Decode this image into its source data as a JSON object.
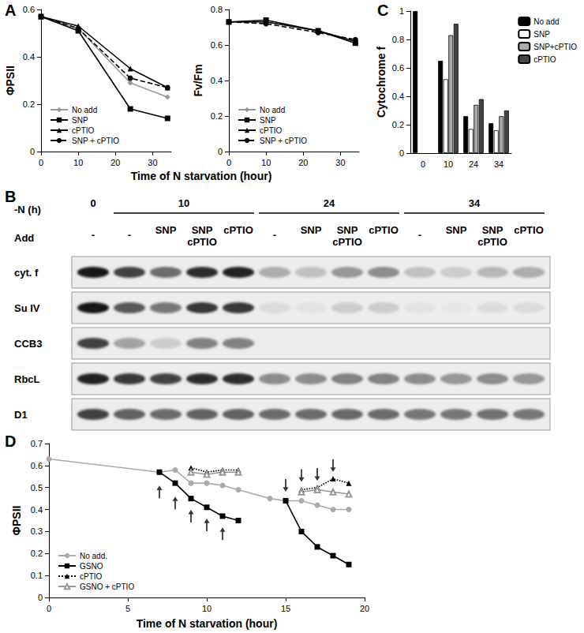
{
  "panel_labels": [
    "A",
    "B",
    "C",
    "D"
  ],
  "chart_data": [
    {
      "type": "line",
      "x_label": "Time of N starvation (hour)",
      "y_label": "ΦPSII",
      "xlim": [
        0,
        35
      ],
      "xticks": [
        0,
        10,
        20,
        30
      ],
      "ylim": [
        0,
        0.6
      ],
      "yticks": [
        0,
        0.2,
        0.4,
        0.6
      ],
      "legend": "bottom-left",
      "series": [
        {
          "name": "No add",
          "color": "#999999",
          "marker": "diamond",
          "line_style": "solid",
          "x": [
            0,
            10,
            24,
            34
          ],
          "values": [
            0.57,
            0.52,
            0.29,
            0.23
          ]
        },
        {
          "name": "SNP",
          "color": "#000000",
          "marker": "square",
          "line_style": "solid",
          "x": [
            0,
            10,
            24,
            34
          ],
          "values": [
            0.57,
            0.51,
            0.18,
            0.14
          ]
        },
        {
          "name": "cPTIO",
          "color": "#000000",
          "marker": "triangle",
          "line_style": "solid",
          "x": [
            0,
            10,
            24,
            34
          ],
          "values": [
            0.57,
            0.53,
            0.35,
            0.27
          ]
        },
        {
          "name": "SNP + cPTIO",
          "color": "#000000",
          "marker": "circle",
          "line_style": "dashed",
          "x": [
            0,
            10,
            24,
            34
          ],
          "values": [
            0.57,
            0.52,
            0.31,
            0.27
          ]
        }
      ]
    },
    {
      "type": "line",
      "y_label": "Fv/Fm",
      "xlim": [
        0,
        35
      ],
      "xticks": [
        0,
        10,
        20,
        30
      ],
      "ylim": [
        0,
        0.8
      ],
      "yticks": [
        0,
        0.2,
        0.4,
        0.6,
        0.8
      ],
      "legend": "bottom-left",
      "series": [
        {
          "name": "No add",
          "color": "#999999",
          "marker": "diamond",
          "line_style": "solid",
          "x": [
            0,
            10,
            24,
            34
          ],
          "values": [
            0.73,
            0.73,
            0.68,
            0.62
          ]
        },
        {
          "name": "SNP",
          "color": "#000000",
          "marker": "square",
          "line_style": "solid",
          "x": [
            0,
            10,
            24,
            34
          ],
          "values": [
            0.73,
            0.74,
            0.68,
            0.61
          ]
        },
        {
          "name": "cPTIO",
          "color": "#000000",
          "marker": "triangle",
          "line_style": "solid",
          "x": [
            0,
            10,
            24,
            34
          ],
          "values": [
            0.73,
            0.73,
            0.68,
            0.62
          ]
        },
        {
          "name": "SNP + cPTIO",
          "color": "#000000",
          "marker": "circle",
          "line_style": "dashed",
          "x": [
            0,
            10,
            24,
            34
          ],
          "values": [
            0.73,
            0.72,
            0.67,
            0.63
          ]
        }
      ]
    },
    {
      "type": "bar",
      "y_label": "Cytochrome f",
      "categories": [
        "0",
        "10",
        "24",
        "34"
      ],
      "ylim": [
        0,
        1
      ],
      "yticks": [
        0,
        0.2,
        0.4,
        0.6,
        0.8,
        1
      ],
      "legend": "top-right",
      "series": [
        {
          "name": "No add",
          "color": "#000000",
          "values": [
            1,
            0.65,
            0.26,
            0.21
          ]
        },
        {
          "name": "SNP",
          "color": "#ffffff",
          "values": [
            null,
            0.52,
            0.17,
            0.16
          ]
        },
        {
          "name": "SNP+cPTIO",
          "color": "#aaaaaa",
          "values": [
            null,
            0.83,
            0.34,
            0.26
          ]
        },
        {
          "name": "cPTIO",
          "color": "#444444",
          "values": [
            null,
            0.91,
            0.38,
            0.3
          ]
        }
      ]
    },
    {
      "type": "line",
      "x_label": "Time of N starvation (hour)",
      "y_label": "ΦPSII",
      "xlim": [
        0,
        20
      ],
      "xticks": [
        0,
        5,
        10,
        15,
        20
      ],
      "ylim": [
        0,
        0.7
      ],
      "yticks": [
        0,
        0.1,
        0.2,
        0.3,
        0.4,
        0.5,
        0.6,
        0.7
      ],
      "legend": "bottom-left",
      "series": [
        {
          "name": "No add.",
          "color": "#aaaaaa",
          "marker": "circle",
          "line_style": "solid",
          "x": [
            0,
            7,
            8,
            9,
            10,
            11,
            12,
            14,
            15,
            16,
            17,
            18,
            19
          ],
          "values": [
            0.63,
            0.57,
            0.58,
            0.52,
            0.52,
            0.51,
            0.49,
            0.45,
            0.44,
            0.44,
            0.42,
            0.4,
            0.4
          ]
        },
        {
          "name": "GSNO",
          "color": "#000000",
          "marker": "square",
          "line_style": "solid",
          "x": [
            7,
            8,
            9,
            10,
            11,
            12,
            13,
            15,
            16,
            17,
            18,
            19
          ],
          "values": [
            0.57,
            0.52,
            0.45,
            0.41,
            0.37,
            0.35,
            null,
            0.44,
            0.3,
            0.23,
            0.19,
            0.15
          ]
        },
        {
          "name": "cPTIO",
          "color": "#000000",
          "marker": "triangle",
          "line_style": "dotted",
          "x": [
            9,
            10,
            11,
            12,
            13,
            16,
            17,
            18,
            19
          ],
          "values": [
            0.59,
            0.57,
            0.58,
            0.58,
            null,
            0.49,
            0.5,
            0.54,
            0.52
          ]
        },
        {
          "name": "GSNO + cPTIO",
          "color": "#999999",
          "marker": "open-triangle",
          "line_style": "solid",
          "x": [
            9,
            10,
            11,
            12,
            13,
            16,
            17,
            18,
            19
          ],
          "values": [
            0.57,
            0.56,
            0.57,
            0.57,
            null,
            0.48,
            0.49,
            0.48,
            0.47
          ]
        }
      ],
      "arrows": [
        {
          "x": 7,
          "y": 0.48,
          "direction": "up"
        },
        {
          "x": 8,
          "y": 0.43,
          "direction": "up"
        },
        {
          "x": 9,
          "y": 0.37,
          "direction": "up"
        },
        {
          "x": 10,
          "y": 0.33,
          "direction": "up"
        },
        {
          "x": 11,
          "y": 0.29,
          "direction": "up"
        },
        {
          "x": 15,
          "y": 0.51,
          "direction": "down"
        },
        {
          "x": 16,
          "y": 0.555,
          "direction": "down"
        },
        {
          "x": 17,
          "y": 0.56,
          "direction": "down"
        },
        {
          "x": 18,
          "y": 0.6,
          "direction": "down"
        }
      ]
    }
  ],
  "blot": {
    "time_label": "-N (h)",
    "add_label": "Add",
    "groups": [
      {
        "time": "0",
        "lanes": [
          "-"
        ]
      },
      {
        "time": "10",
        "lanes": [
          "-",
          "SNP",
          "SNP cPTIO",
          "cPTIO"
        ]
      },
      {
        "time": "24",
        "lanes": [
          "-",
          "SNP",
          "SNP cPTIO",
          "cPTIO"
        ]
      },
      {
        "time": "34",
        "lanes": [
          "-",
          "SNP",
          "SNP cPTIO",
          "cPTIO"
        ]
      }
    ],
    "rows": [
      {
        "name": "cyt. f",
        "intensity": [
          1.0,
          0.8,
          0.6,
          0.9,
          0.95,
          0.3,
          0.2,
          0.4,
          0.45,
          0.2,
          0.15,
          0.25,
          0.3
        ]
      },
      {
        "name": "Su IV",
        "intensity": [
          1.0,
          0.7,
          0.55,
          0.85,
          0.85,
          0.08,
          0.05,
          0.15,
          0.15,
          0.05,
          0.03,
          0.08,
          0.08
        ]
      },
      {
        "name": "CCB3",
        "intensity": [
          0.8,
          0.35,
          0.15,
          0.5,
          0.5,
          0,
          0,
          0,
          0,
          0,
          0,
          0,
          0
        ]
      },
      {
        "name": "RbcL",
        "intensity": [
          0.95,
          0.85,
          0.8,
          0.9,
          0.9,
          0.45,
          0.45,
          0.5,
          0.5,
          0.45,
          0.4,
          0.45,
          0.4
        ]
      },
      {
        "name": "D1",
        "intensity": [
          0.8,
          0.65,
          0.6,
          0.65,
          0.65,
          0.6,
          0.6,
          0.62,
          0.6,
          0.55,
          0.55,
          0.58,
          0.55
        ]
      }
    ]
  }
}
